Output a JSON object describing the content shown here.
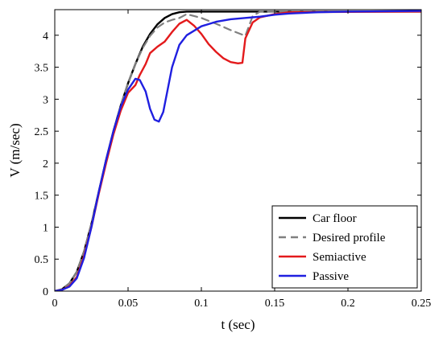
{
  "chart_data": {
    "type": "line",
    "xlabel": "t (sec)",
    "ylabel": "V (m/sec)",
    "xlim": [
      0,
      0.25
    ],
    "ylim": [
      0,
      4.4
    ],
    "xticks": [
      0,
      0.05,
      0.1,
      0.15,
      0.2,
      0.25
    ],
    "xtick_labels": [
      "0",
      "0.05",
      "0.1",
      "0.15",
      "0.2",
      "0.25"
    ],
    "yticks": [
      0,
      0.5,
      1,
      1.5,
      2,
      2.5,
      3,
      3.5,
      4
    ],
    "ytick_labels": [
      "0",
      "0.5",
      "1",
      "1.5",
      "2",
      "2.5",
      "3",
      "3.5",
      "4"
    ],
    "grid": false,
    "legend_position": "bottom-right",
    "series": [
      {
        "name": "Car floor",
        "color": "#000000",
        "dash": "solid",
        "x": [
          0,
          0.005,
          0.01,
          0.015,
          0.02,
          0.025,
          0.03,
          0.035,
          0.04,
          0.045,
          0.05,
          0.055,
          0.06,
          0.065,
          0.07,
          0.075,
          0.08,
          0.085,
          0.09,
          0.25
        ],
        "y": [
          0,
          0.03,
          0.12,
          0.3,
          0.62,
          1.05,
          1.55,
          2.05,
          2.5,
          2.9,
          3.25,
          3.55,
          3.82,
          4.02,
          4.17,
          4.27,
          4.33,
          4.36,
          4.37,
          4.37
        ]
      },
      {
        "name": "Desired profile",
        "color": "#808080",
        "dash": "dashed",
        "x": [
          0,
          0.005,
          0.01,
          0.015,
          0.02,
          0.025,
          0.03,
          0.035,
          0.04,
          0.045,
          0.05,
          0.055,
          0.06,
          0.065,
          0.07,
          0.075,
          0.08,
          0.085,
          0.09,
          0.1,
          0.11,
          0.12,
          0.13,
          0.135,
          0.14,
          0.25
        ],
        "y": [
          0,
          0.03,
          0.12,
          0.3,
          0.62,
          1.05,
          1.55,
          2.05,
          2.5,
          2.9,
          3.25,
          3.55,
          3.8,
          3.99,
          4.12,
          4.2,
          4.24,
          4.27,
          4.33,
          4.27,
          4.18,
          4.08,
          3.99,
          4.3,
          4.37,
          4.37
        ]
      },
      {
        "name": "Semiactive",
        "color": "#e31a1c",
        "dash": "solid",
        "x": [
          0,
          0.005,
          0.01,
          0.015,
          0.02,
          0.025,
          0.03,
          0.035,
          0.04,
          0.045,
          0.05,
          0.055,
          0.058,
          0.062,
          0.065,
          0.07,
          0.075,
          0.08,
          0.085,
          0.09,
          0.095,
          0.1,
          0.105,
          0.11,
          0.115,
          0.12,
          0.125,
          0.128,
          0.13,
          0.135,
          0.14,
          0.15,
          0.16,
          0.25
        ],
        "y": [
          0,
          0.02,
          0.08,
          0.22,
          0.55,
          1.0,
          1.52,
          2.0,
          2.45,
          2.82,
          3.1,
          3.22,
          3.38,
          3.55,
          3.72,
          3.82,
          3.9,
          4.05,
          4.18,
          4.24,
          4.15,
          4.02,
          3.86,
          3.74,
          3.64,
          3.58,
          3.56,
          3.57,
          3.95,
          4.2,
          4.28,
          4.33,
          4.36,
          4.37
        ]
      },
      {
        "name": "Passive",
        "color": "#1f1fe0",
        "dash": "solid",
        "x": [
          0,
          0.005,
          0.01,
          0.015,
          0.02,
          0.025,
          0.03,
          0.035,
          0.04,
          0.045,
          0.05,
          0.055,
          0.058,
          0.062,
          0.065,
          0.068,
          0.071,
          0.074,
          0.077,
          0.08,
          0.085,
          0.09,
          0.1,
          0.11,
          0.12,
          0.13,
          0.14,
          0.15,
          0.16,
          0.18,
          0.2,
          0.25
        ],
        "y": [
          0,
          0.02,
          0.07,
          0.2,
          0.52,
          1.0,
          1.55,
          2.05,
          2.5,
          2.88,
          3.15,
          3.32,
          3.3,
          3.12,
          2.85,
          2.68,
          2.65,
          2.8,
          3.15,
          3.5,
          3.85,
          4.0,
          4.14,
          4.21,
          4.25,
          4.27,
          4.29,
          4.32,
          4.34,
          4.36,
          4.37,
          4.38
        ]
      }
    ]
  }
}
